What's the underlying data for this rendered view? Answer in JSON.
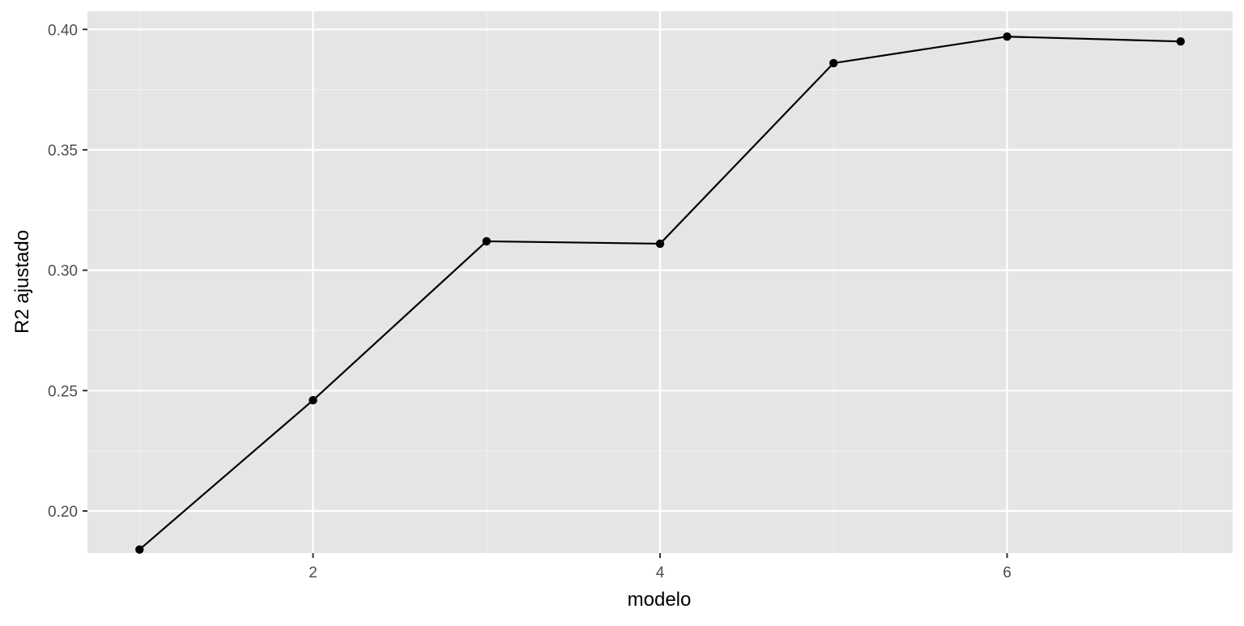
{
  "chart_data": {
    "type": "line",
    "title": "",
    "xlabel": "modelo",
    "ylabel": "R2 ajustado",
    "xlim": [
      0.7,
      7.3
    ],
    "ylim": [
      0.1825,
      0.4075
    ],
    "x_ticks": [
      2,
      4,
      6
    ],
    "x_tick_labels": [
      "2",
      "4",
      "6"
    ],
    "x_minor_ticks": [
      1,
      3,
      5,
      7
    ],
    "y_ticks": [
      0.2,
      0.25,
      0.3,
      0.35,
      0.4
    ],
    "y_tick_labels": [
      "0.20",
      "0.25",
      "0.30",
      "0.35",
      "0.40"
    ],
    "y_minor_ticks": [
      0.225,
      0.275,
      0.325,
      0.375
    ],
    "grid": true,
    "x": [
      1,
      2,
      3,
      4,
      5,
      6,
      7
    ],
    "series": [
      {
        "values": [
          0.184,
          0.246,
          0.312,
          0.311,
          0.386,
          0.397,
          0.395
        ],
        "markers": true
      }
    ],
    "colors": {
      "panel_background": "#e5e5e5",
      "grid_major": "#ffffff",
      "grid_minor": "#f2f2f2",
      "line": "#000000",
      "point": "#000000",
      "tick_text": "#4d4d4d",
      "tick_mark": "#333333"
    }
  }
}
